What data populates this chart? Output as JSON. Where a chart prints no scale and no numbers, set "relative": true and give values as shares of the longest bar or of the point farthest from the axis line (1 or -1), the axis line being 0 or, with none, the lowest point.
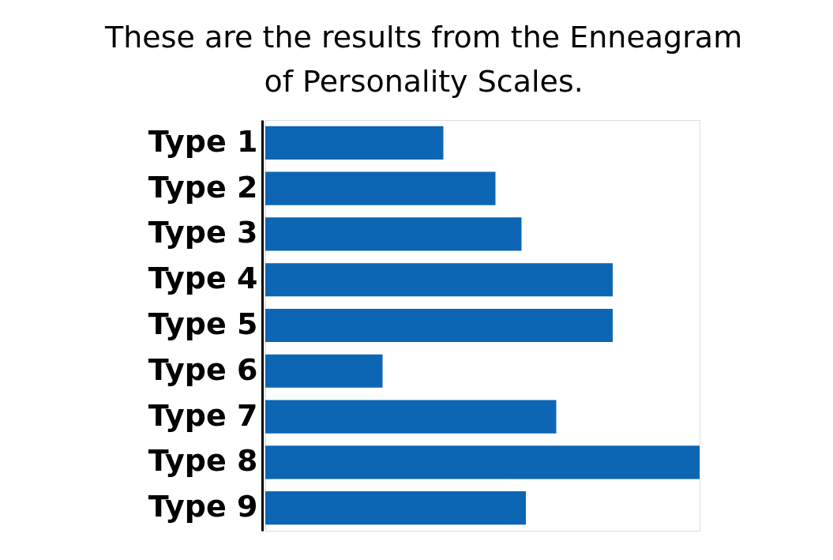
{
  "chart_data": {
    "type": "bar",
    "orientation": "horizontal",
    "relative": true,
    "title": "These are the results from the Enneagram of Personality Scales.",
    "categories": [
      "Type 1",
      "Type 2",
      "Type 3",
      "Type 4",
      "Type 5",
      "Type 6",
      "Type 7",
      "Type 8",
      "Type 9"
    ],
    "values": [
      0.41,
      0.53,
      0.59,
      0.8,
      0.8,
      0.27,
      0.67,
      1,
      0.6
    ],
    "color": "#0c66b3"
  }
}
